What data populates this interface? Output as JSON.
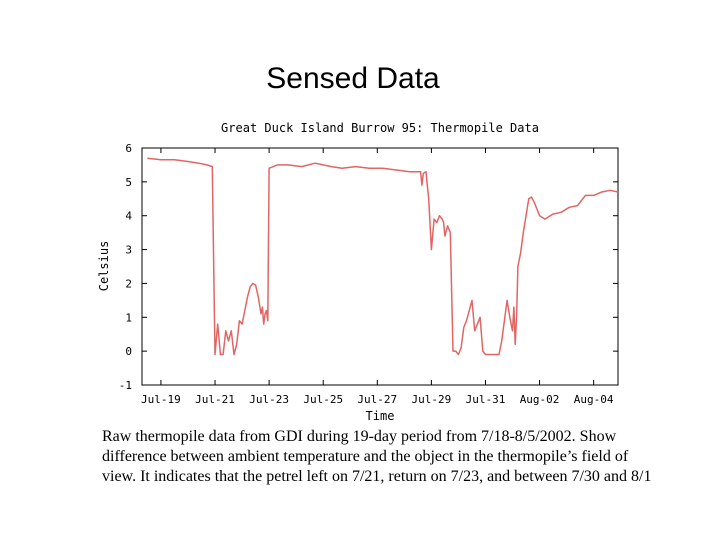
{
  "slide": {
    "title": "Sensed Data",
    "caption": "Raw thermopile data from GDI during 19-day period from 7/18-8/5/2002. Show difference between ambient temperature and the object in the thermopile’s field of view. It indicates that the petrel left on 7/21, return on 7/23, and between 7/30 and 8/1"
  },
  "colors": {
    "series": "#e06666",
    "axis": "#000000",
    "grid": "#000000"
  },
  "chart_data": {
    "type": "line",
    "title": "Great Duck Island Burrow 95: Thermopile Data",
    "xlabel": "Time",
    "ylabel": "Celsius",
    "ylim": [
      -1,
      6
    ],
    "xlim": [
      18.3,
      35.9
    ],
    "yticks": [
      6,
      5,
      4,
      3,
      2,
      1,
      0,
      -1
    ],
    "xtick_values": [
      19,
      21,
      23,
      25,
      27,
      29,
      31,
      33,
      35
    ],
    "xtick_labels": [
      "Jul-19",
      "Jul-21",
      "Jul-23",
      "Jul-25",
      "Jul-27",
      "Jul-29",
      "Jul-31",
      "Aug-02",
      "Aug-04"
    ],
    "grid": false,
    "legend": "none",
    "series": [
      {
        "x": [
          18.5,
          19.0,
          19.5,
          20.0,
          20.4,
          20.7,
          20.9,
          20.95,
          21.0,
          21.1,
          21.2,
          21.3,
          21.4,
          21.5,
          21.6,
          21.7,
          21.8,
          21.9,
          22.0,
          22.1,
          22.2,
          22.3,
          22.4,
          22.5,
          22.6,
          22.7,
          22.75,
          22.8,
          22.85,
          22.9,
          22.95,
          23.0,
          23.3,
          23.7,
          24.2,
          24.7,
          25.0,
          25.3,
          25.7,
          26.2,
          26.7,
          27.2,
          27.7,
          28.2,
          28.6,
          28.65,
          28.7,
          28.8,
          28.85,
          28.9,
          29.0,
          29.1,
          29.2,
          29.3,
          29.4,
          29.45,
          29.5,
          29.6,
          29.7,
          29.8,
          29.9,
          30.0,
          30.1,
          30.2,
          30.3,
          30.5,
          30.6,
          30.8,
          30.9,
          31.0,
          31.1,
          31.2,
          31.3,
          31.4,
          31.5,
          31.6,
          31.7,
          31.8,
          31.9,
          32.0,
          32.05,
          32.1,
          32.15,
          32.2,
          32.3,
          32.4,
          32.5,
          32.6,
          32.7,
          32.8,
          32.9,
          33.0,
          33.2,
          33.5,
          33.8,
          34.1,
          34.4,
          34.7,
          35.0,
          35.3,
          35.6,
          35.9
        ],
        "y": [
          5.7,
          5.65,
          5.65,
          5.6,
          5.55,
          5.5,
          5.45,
          2.5,
          -0.1,
          0.8,
          -0.1,
          -0.1,
          0.6,
          0.3,
          0.6,
          -0.1,
          0.2,
          0.9,
          0.8,
          1.2,
          1.6,
          1.9,
          2.0,
          1.95,
          1.6,
          1.1,
          1.3,
          0.8,
          1.1,
          1.2,
          0.9,
          5.4,
          5.5,
          5.5,
          5.45,
          5.55,
          5.5,
          5.45,
          5.4,
          5.45,
          5.4,
          5.4,
          5.35,
          5.3,
          5.3,
          4.9,
          5.25,
          5.3,
          4.9,
          4.5,
          3.0,
          3.9,
          3.8,
          4.0,
          3.9,
          3.8,
          3.4,
          3.7,
          3.5,
          0.0,
          0.0,
          -0.1,
          0.1,
          0.7,
          0.9,
          1.5,
          0.6,
          1.0,
          0.0,
          -0.1,
          -0.1,
          -0.1,
          -0.1,
          -0.1,
          -0.1,
          0.3,
          0.9,
          1.5,
          1.0,
          0.6,
          1.3,
          0.2,
          1.0,
          2.5,
          2.9,
          3.5,
          4.0,
          4.5,
          4.55,
          4.4,
          4.2,
          4.0,
          3.9,
          4.05,
          4.1,
          4.25,
          4.3,
          4.6,
          4.6,
          4.7,
          4.75,
          4.7
        ]
      }
    ]
  }
}
